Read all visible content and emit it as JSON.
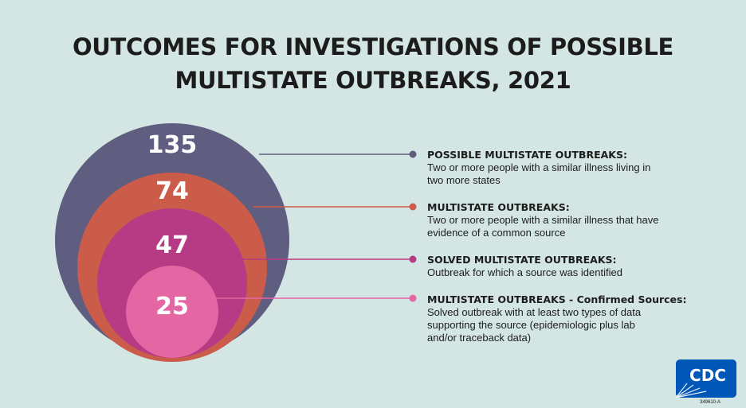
{
  "title": {
    "line1": "OUTCOMES FOR INVESTIGATIONS OF POSSIBLE",
    "line2": "MULTISTATE OUTBREAKS, 2021"
  },
  "levels": [
    {
      "value": "135",
      "color": "#5f5d80",
      "heading": "POSSIBLE MULTISTATE OUTBREAKS:",
      "description": "Two or more people with a similar illness living in two more states"
    },
    {
      "value": "74",
      "color": "#cb5c4a",
      "heading": "MULTISTATE OUTBREAKS:",
      "description": "Two or more people with a similar illness that have evidence of a common source"
    },
    {
      "value": "47",
      "color": "#b73a85",
      "heading": "SOLVED MULTISTATE OUTBREAKS:",
      "description": "Outbreak for which a source was identified"
    },
    {
      "value": "25",
      "color": "#e467a4",
      "heading": "MULTISTATE OUTBREAKS - Confirmed Sources:",
      "description": "Solved outbreak with at least two types of data supporting the source (epidemiologic plus lab and/or traceback data)"
    }
  ],
  "logo": {
    "text": "CDC",
    "color": "#0057b8"
  },
  "footer_code": "349610-A"
}
